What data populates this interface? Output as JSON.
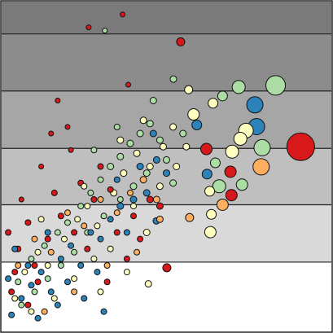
{
  "chart_data": {
    "type": "bubble",
    "xlim": [
      0,
      100
    ],
    "ylim": [
      0,
      100
    ],
    "yticks": [
      21.0,
      38.4,
      55.5,
      72.9,
      90.2
    ],
    "grid": true,
    "band_colors": [
      "#ffffff",
      "#d9d9d9",
      "#bfbfbf",
      "#a6a6a6",
      "#8c8c8c",
      "#7a7a7a"
    ],
    "series": [
      {
        "color": "#d7191c",
        "x": [
          90.7,
          69.7,
          69.4,
          62.1,
          54.3,
          50.1,
          36.7,
          38.4,
          26.4,
          2,
          5,
          8,
          3,
          10,
          14,
          18,
          6,
          12,
          15,
          17,
          20,
          24,
          28,
          30,
          22,
          26,
          35,
          38,
          32,
          8,
          4,
          16,
          21,
          33,
          40,
          45,
          48,
          42,
          11
        ],
        "y": [
          56.0,
          41.3,
          48.4,
          55.3,
          87.8,
          19.3,
          96.1,
          74.8,
          92.2,
          30,
          25,
          33,
          12,
          20,
          28,
          35,
          40,
          50,
          60,
          70,
          62,
          45,
          40,
          50,
          30,
          25,
          30,
          22,
          15,
          8,
          18,
          42,
          55,
          43,
          35,
          40,
          38,
          28,
          15
        ],
        "size": [
          17,
          7,
          7,
          7,
          5,
          5,
          3,
          3,
          3,
          3.5,
          3.5,
          3.5,
          3.5,
          3.5,
          3.5,
          3.5,
          3,
          3,
          3,
          3,
          3,
          3.5,
          3.5,
          3.5,
          3.5,
          3.5,
          3.5,
          3.5,
          3.5,
          3.5,
          3.5,
          3.5,
          3,
          3.5,
          3.5,
          4,
          4,
          3.5,
          3.5
        ]
      },
      {
        "color": "#abdda4",
        "x": [
          83.1,
          71.9,
          79.0,
          67.0,
          64.8,
          66.0,
          72.9,
          52.1,
          31.3,
          5,
          9,
          13,
          17,
          20,
          24,
          27,
          30,
          33,
          36,
          39,
          42,
          45,
          48,
          50,
          44,
          40,
          36,
          31,
          26,
          22,
          18,
          14,
          10,
          6,
          46,
          35,
          28,
          52,
          55
        ],
        "y": [
          74.6,
          74.1,
          55.7,
          71.4,
          51.1,
          44.0,
          44.5,
          76.5,
          91.2,
          15,
          22,
          26,
          30,
          33,
          38,
          42,
          46,
          50,
          53,
          57,
          60,
          63,
          58,
          52,
          48,
          44,
          40,
          35,
          30,
          24,
          20,
          16,
          12,
          8,
          70,
          62,
          55,
          45,
          60
        ],
        "size": [
          12,
          8,
          10,
          6,
          6,
          8,
          7,
          4,
          3,
          3.5,
          3.5,
          3.5,
          3.5,
          3.5,
          3.5,
          3.5,
          3.5,
          4,
          4,
          4,
          4,
          4,
          4,
          4,
          4,
          4,
          3.5,
          3.5,
          3.5,
          3.5,
          3.5,
          3.5,
          3.5,
          3.5,
          4,
          3.5,
          3.5,
          4,
          4
        ]
      },
      {
        "color": "#2b83ba",
        "x": [
          76.8,
          77.3,
          59.2,
          62.3,
          46.9,
          3,
          6,
          9,
          12,
          15,
          18,
          21,
          24,
          27,
          30,
          33,
          36,
          40,
          44,
          47,
          50,
          38,
          29,
          8,
          4,
          14,
          20,
          25,
          31,
          46,
          42,
          35,
          11,
          2,
          17
        ],
        "y": [
          68.7,
          62.1,
          62.6,
          47.7,
          33.5,
          5,
          10,
          14,
          18,
          12,
          22,
          26,
          20,
          30,
          28,
          34,
          38,
          40,
          42,
          52,
          48,
          30,
          18,
          20,
          25,
          30,
          15,
          10,
          6,
          60,
          50,
          46,
          4,
          16,
          8
        ],
        "size": [
          10,
          10,
          6,
          6,
          4,
          3.5,
          3.5,
          3.5,
          3.5,
          3.5,
          3.5,
          3.5,
          3.5,
          3.5,
          3.5,
          3.5,
          4,
          4,
          4,
          4,
          4,
          3.5,
          3.5,
          3.5,
          3.5,
          3.5,
          3.5,
          3.5,
          3.5,
          4,
          4,
          3.5,
          3.5,
          3.5,
          3.5
        ]
      },
      {
        "color": "#fdae61",
        "x": [
          78.7,
          67.0,
          57.0,
          5,
          10,
          15,
          20,
          25,
          30,
          35,
          39,
          43,
          47,
          41,
          32,
          22,
          13,
          48
        ],
        "y": [
          49.9,
          38.4,
          34.5,
          20,
          28,
          24,
          36,
          32,
          40,
          36,
          42,
          46,
          40,
          24,
          20,
          12,
          6,
          34
        ],
        "size": [
          10,
          7,
          5,
          3.5,
          3.5,
          3.5,
          3.5,
          3.5,
          3.5,
          3.5,
          3.5,
          4,
          4,
          3.5,
          3.5,
          3.5,
          3.5,
          4
        ]
      },
      {
        "color": "#ffffbf",
        "x": [
          74.1,
          72.4,
          69.9,
          63.3,
          63.6,
          56.7,
          58.2,
          64.1,
          63.1,
          44.5,
          4,
          7,
          11,
          14,
          19,
          23,
          26,
          29,
          34,
          37,
          41,
          45,
          49,
          52,
          40,
          33,
          28,
          22,
          16,
          9,
          44,
          38,
          30,
          48,
          43,
          36,
          53,
          56,
          25,
          12
        ],
        "y": [
          60.9,
          58.4,
          54.5,
          30.1,
          35.5,
          73.3,
          65.8,
          69.2,
          42.5,
          14.4,
          10,
          18,
          24,
          20,
          28,
          34,
          38,
          32,
          42,
          48,
          54,
          50,
          56,
          62,
          38,
          25,
          22,
          16,
          10,
          6,
          30,
          18,
          12,
          44,
          64,
          58,
          50,
          56,
          44,
          34
        ],
        "size": [
          9,
          8,
          8,
          7,
          6,
          5,
          7,
          6,
          6,
          4,
          3.5,
          3.5,
          3.5,
          3.5,
          3.5,
          3.5,
          3.5,
          3.5,
          4,
          4,
          4,
          4,
          4,
          4,
          3.5,
          3.5,
          3.5,
          3.5,
          3.5,
          3.5,
          4,
          3.5,
          3.5,
          4,
          4,
          4,
          4,
          4,
          3.5,
          3.5
        ]
      }
    ]
  }
}
